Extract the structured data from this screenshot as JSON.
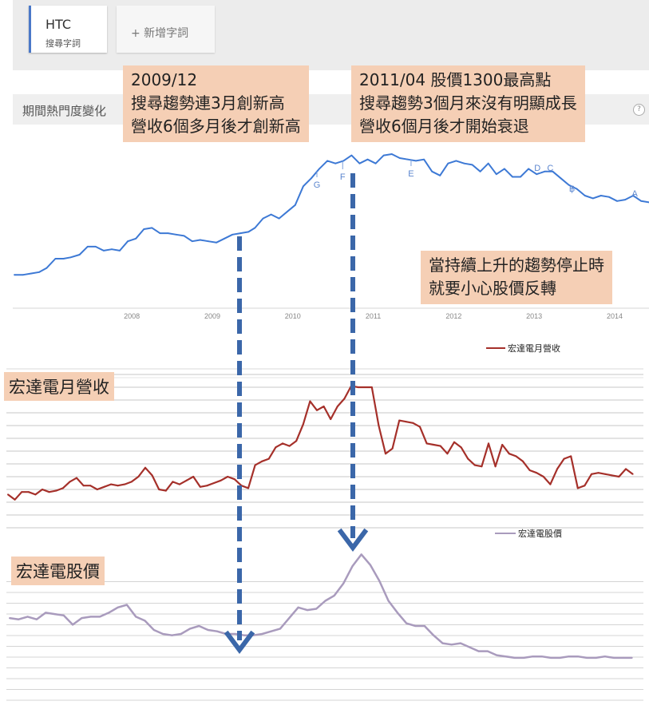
{
  "header": {
    "term": {
      "name": "HTC",
      "sub": "搜尋字詞"
    },
    "add_term_label": "+ 新增字詞",
    "section_title": "期間熱門度變化",
    "help_icon": "?"
  },
  "annotations": {
    "dec2009": [
      "2009/12",
      "搜尋趨勢連3月創新高",
      "營收6個多月後才創新高"
    ],
    "apr2011": [
      "2011/04 股價1300最高點",
      "搜尋趨勢3個月來沒有明顯成長",
      "營收6個月後才開始衰退"
    ],
    "warning": [
      "當持續上升的趨勢停止時",
      "就要小心股價反轉"
    ]
  },
  "panel_labels": {
    "revenue": "宏達電月營收",
    "price": "宏達電股價"
  },
  "colors": {
    "trend": "#3d79d5",
    "revenue": "#a5302a",
    "price": "#a99bbd",
    "arrow": "#3b67a9",
    "callout": "#f5cfb5"
  },
  "chart_data": [
    {
      "type": "line",
      "x_ticks": [
        "2008",
        "2009",
        "2010",
        "2011",
        "2012",
        "2013",
        "2014"
      ],
      "x_range": [
        2007.04,
        2014.93
      ],
      "y_range": [
        0,
        100
      ],
      "grid": false,
      "series": [
        {
          "points": [
            [
              2007.04,
              13
            ],
            [
              2007.15,
              13
            ],
            [
              2007.25,
              14
            ],
            [
              2007.35,
              15
            ],
            [
              2007.44,
              18
            ],
            [
              2007.55,
              25
            ],
            [
              2007.65,
              25
            ],
            [
              2007.74,
              26
            ],
            [
              2007.85,
              28
            ],
            [
              2007.95,
              34
            ],
            [
              2008.05,
              34
            ],
            [
              2008.15,
              31
            ],
            [
              2008.25,
              32
            ],
            [
              2008.35,
              31
            ],
            [
              2008.45,
              38
            ],
            [
              2008.55,
              40
            ],
            [
              2008.65,
              47
            ],
            [
              2008.75,
              48
            ],
            [
              2008.85,
              44
            ],
            [
              2008.95,
              44
            ],
            [
              2009.05,
              43
            ],
            [
              2009.15,
              42
            ],
            [
              2009.25,
              38
            ],
            [
              2009.35,
              39
            ],
            [
              2009.45,
              38
            ],
            [
              2009.55,
              37
            ],
            [
              2009.65,
              40
            ],
            [
              2009.75,
              43
            ],
            [
              2009.85,
              44
            ],
            [
              2009.95,
              45
            ],
            [
              2010.03,
              48
            ],
            [
              2010.13,
              55
            ],
            [
              2010.23,
              58
            ],
            [
              2010.33,
              55
            ],
            [
              2010.43,
              60
            ],
            [
              2010.53,
              65
            ],
            [
              2010.63,
              79
            ],
            [
              2010.73,
              85
            ],
            [
              2010.83,
              92
            ],
            [
              2010.93,
              98
            ],
            [
              2011.03,
              96
            ],
            [
              2011.13,
              98
            ],
            [
              2011.23,
              102
            ],
            [
              2011.33,
              96
            ],
            [
              2011.43,
              99
            ],
            [
              2011.53,
              96
            ],
            [
              2011.63,
              102
            ],
            [
              2011.73,
              103
            ],
            [
              2011.83,
              100
            ],
            [
              2011.93,
              99
            ],
            [
              2012.03,
              98
            ],
            [
              2012.13,
              99
            ],
            [
              2012.23,
              90
            ],
            [
              2012.33,
              87
            ],
            [
              2012.43,
              96
            ],
            [
              2012.53,
              98
            ],
            [
              2012.63,
              96
            ],
            [
              2012.73,
              95
            ],
            [
              2012.83,
              90
            ],
            [
              2012.93,
              96
            ],
            [
              2013.03,
              88
            ],
            [
              2013.13,
              92
            ],
            [
              2013.23,
              86
            ],
            [
              2013.33,
              86
            ],
            [
              2013.43,
              92
            ],
            [
              2013.53,
              88
            ],
            [
              2013.63,
              90
            ],
            [
              2013.73,
              90
            ],
            [
              2013.83,
              85
            ],
            [
              2013.93,
              80
            ],
            [
              2014.03,
              77
            ],
            [
              2014.13,
              72
            ],
            [
              2014.23,
              70
            ],
            [
              2014.33,
              72
            ],
            [
              2014.43,
              71
            ],
            [
              2014.53,
              68
            ],
            [
              2014.63,
              69
            ],
            [
              2014.73,
              72
            ],
            [
              2014.83,
              68
            ],
            [
              2014.93,
              67
            ]
          ]
        }
      ],
      "markers": [
        {
          "label": "G",
          "x": 2010.8
        },
        {
          "label": "F",
          "x": 2011.12
        },
        {
          "label": "E",
          "x": 2011.97
        },
        {
          "label": "D",
          "x": 2013.57
        },
        {
          "label": "C",
          "x": 2013.67
        },
        {
          "label": "B",
          "x": 2013.97
        },
        {
          "label": "A",
          "x": 2014.75
        }
      ]
    },
    {
      "type": "line",
      "x_range": [
        0,
        79
      ],
      "y_range": [
        0,
        12
      ],
      "grid": true,
      "legend_position": "top-right",
      "series": [
        {
          "name": "宏達電月營收",
          "values": [
            2.6,
            2.2,
            2.8,
            2.8,
            2.6,
            3.0,
            2.8,
            2.9,
            3.1,
            3.6,
            3.9,
            3.3,
            3.3,
            3.0,
            3.2,
            3.4,
            3.3,
            3.4,
            3.6,
            4.0,
            4.7,
            4.1,
            3.0,
            2.9,
            3.6,
            3.4,
            3.7,
            4.0,
            3.2,
            3.3,
            3.5,
            3.7,
            4.0,
            3.8,
            3.3,
            3.1,
            4.9,
            5.2,
            5.4,
            6.3,
            6.6,
            6.4,
            6.8,
            8.1,
            9.9,
            9.2,
            9.5,
            8.5,
            9.5,
            10.1,
            11.1,
            11.0,
            11.0,
            11.0,
            8.0,
            5.8,
            6.2,
            8.4,
            8.3,
            8.2,
            7.9,
            6.6,
            6.5,
            6.4,
            5.8,
            6.7,
            6.3,
            5.4,
            4.9,
            4.8,
            6.6,
            4.8,
            6.5,
            5.8,
            5.6,
            5.2,
            4.5,
            4.3,
            4.0,
            3.4,
            4.6,
            5.4,
            5.6,
            3.1,
            3.3,
            4.2,
            4.3,
            4.2,
            4.1,
            4.0,
            4.6,
            4.2
          ]
        },
        {
          "name": "宏達電股價",
          "values": [
            6.2,
            6.1,
            6.3,
            6.1,
            6.6,
            6.5,
            6.4,
            5.7,
            6.2,
            6.3,
            6.3,
            6.6,
            7.0,
            7.2,
            6.3,
            6.0,
            5.3,
            5.0,
            4.9,
            5.0,
            5.4,
            5.6,
            5.3,
            5.2,
            5.0,
            5.0,
            4.9,
            4.9,
            5.0,
            5.2,
            5.4,
            6.2,
            7.0,
            6.8,
            6.9,
            7.5,
            7.9,
            8.8,
            10.1,
            11.0,
            10.2,
            9.0,
            7.5,
            6.6,
            5.8,
            5.6,
            5.6,
            4.9,
            4.3,
            4.2,
            4.3,
            4.0,
            3.7,
            3.7,
            3.4,
            3.3,
            3.2,
            3.2,
            3.3,
            3.3,
            3.2,
            3.2,
            3.3,
            3.3,
            3.2,
            3.2,
            3.3,
            3.2,
            3.2,
            3.2
          ]
        }
      ]
    }
  ]
}
